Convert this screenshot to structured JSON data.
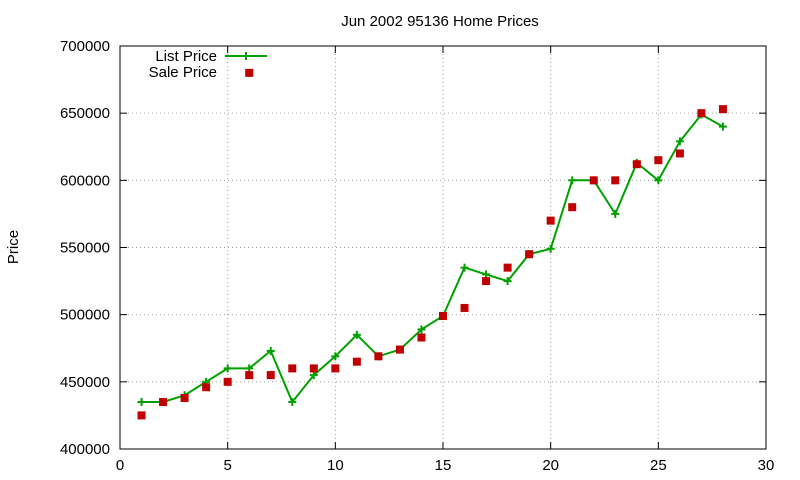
{
  "chart_data": {
    "type": "line",
    "title": "Jun 2002 95136 Home Prices",
    "xlabel": "",
    "ylabel": "Price",
    "xlim": [
      0,
      30
    ],
    "ylim": [
      400000,
      700000
    ],
    "x_ticks": [
      0,
      5,
      10,
      15,
      20,
      25,
      30
    ],
    "y_ticks": [
      400000,
      450000,
      500000,
      550000,
      600000,
      650000,
      700000
    ],
    "grid": true,
    "legend_position": "top-left",
    "series": [
      {
        "name": "List Price",
        "style": "line-with-plus-markers",
        "color": "#00a000",
        "x": [
          1,
          2,
          3,
          4,
          5,
          6,
          7,
          8,
          9,
          10,
          11,
          12,
          13,
          14,
          15,
          16,
          17,
          18,
          19,
          20,
          21,
          22,
          23,
          24,
          25,
          26,
          27,
          28
        ],
        "y": [
          435000,
          435000,
          440000,
          450000,
          460000,
          460000,
          473000,
          435000,
          455000,
          469000,
          485000,
          469000,
          474000,
          489000,
          499000,
          535000,
          530000,
          525000,
          545000,
          549000,
          600000,
          600000,
          575000,
          613000,
          600000,
          629000,
          649000,
          640000
        ]
      },
      {
        "name": "Sale Price",
        "style": "square-markers",
        "color": "#c00000",
        "x": [
          1,
          2,
          3,
          4,
          5,
          6,
          6,
          7,
          8,
          9,
          10,
          11,
          12,
          13,
          14,
          15,
          16,
          17,
          18,
          19,
          20,
          21,
          22,
          23,
          24,
          25,
          26,
          27,
          28
        ],
        "y": [
          425000,
          435000,
          438000,
          446000,
          450000,
          455000,
          680000,
          455000,
          460000,
          460000,
          460000,
          465000,
          469000,
          474000,
          483000,
          499000,
          505000,
          525000,
          535000,
          545000,
          570000,
          580000,
          600000,
          600000,
          612000,
          615000,
          620000,
          650000,
          653000
        ]
      }
    ]
  }
}
